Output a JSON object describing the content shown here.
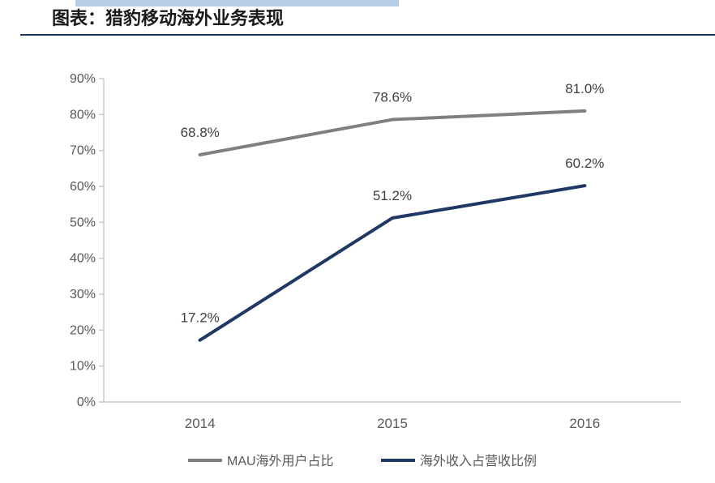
{
  "header": {
    "title": "图表：猎豹移动海外业务表现",
    "accent_bar_color": "#b7cde8",
    "underline_color": "#1f3864"
  },
  "chart_data": {
    "type": "line",
    "title": "图表：猎豹移动海外业务表现",
    "categories": [
      "2014",
      "2015",
      "2016"
    ],
    "series": [
      {
        "name": "MAU海外用户占比",
        "values": [
          68.8,
          78.6,
          81.0
        ],
        "point_labels": [
          "68.8%",
          "78.6%",
          "81.0%"
        ],
        "color": "#7f7f7f"
      },
      {
        "name": "海外收入占营收比例",
        "values": [
          17.2,
          51.2,
          60.2
        ],
        "point_labels": [
          "17.2%",
          "51.2%",
          "60.2%"
        ],
        "color": "#1f3864"
      }
    ],
    "ylim": [
      0,
      90
    ],
    "ytick_labels": [
      "0%",
      "10%",
      "20%",
      "30%",
      "40%",
      "50%",
      "60%",
      "70%",
      "80%",
      "90%"
    ],
    "grid": false,
    "legend_position": "bottom",
    "colors": {
      "axis": "#c9c9c9",
      "tick_text": "#595959",
      "point_label_text": "#3f3f3f",
      "legend_text": "#595959"
    }
  }
}
